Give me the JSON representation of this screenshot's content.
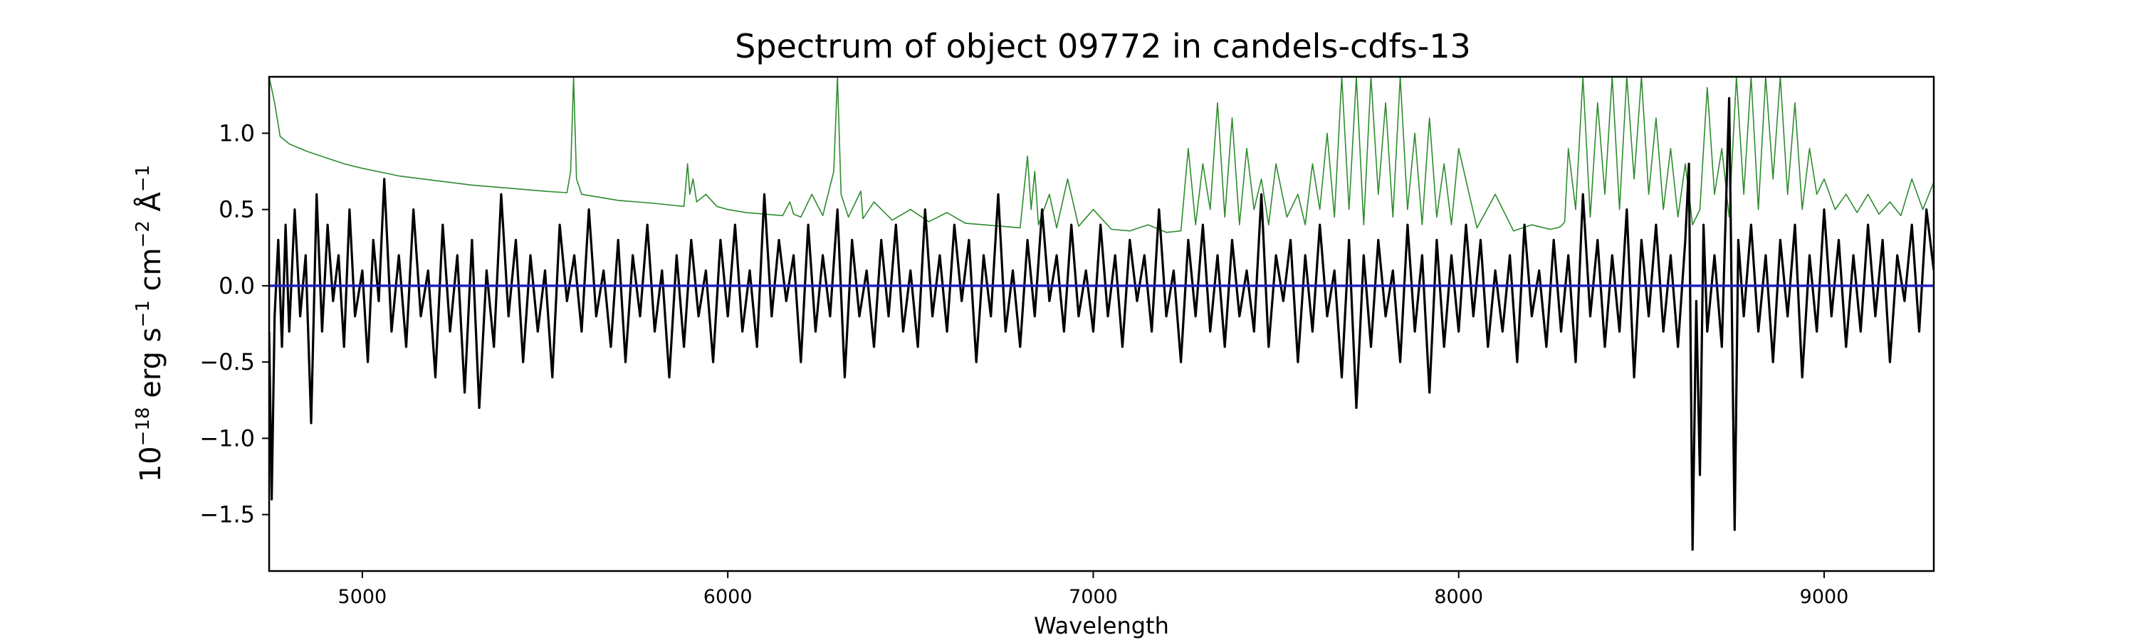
{
  "chart_data": {
    "type": "line",
    "title": "Spectrum of object 09772 in candels-cdfs-13",
    "xlabel": "Wavelength",
    "ylabel": {
      "base": "10",
      "exp_base": "−18",
      "t1": " erg s",
      "exp1": "−1",
      "t2": " cm",
      "exp2": "−2",
      "t3": " Å",
      "exp3": "−1"
    },
    "xlim": [
      4745,
      9300
    ],
    "ylim": [
      -1.87,
      1.37
    ],
    "xticks": [
      5000,
      6000,
      7000,
      8000,
      9000
    ],
    "xtick_labels": [
      "5000",
      "6000",
      "7000",
      "8000",
      "9000"
    ],
    "yticks": [
      1.0,
      0.5,
      0.0,
      -0.5,
      -1.0,
      -1.5
    ],
    "ytick_labels": [
      "1.0",
      "0.5",
      "0.0",
      "−0.5",
      "−1.0",
      "−1.5"
    ],
    "grid": false,
    "colors": {
      "flux": "#000000",
      "noise": "#2e8b2e",
      "zero": "#1f1fbf",
      "axes": "#000000"
    },
    "series": [
      {
        "role": "zero-line",
        "x": [
          4745,
          9300
        ],
        "y": [
          0.0,
          0.0
        ]
      },
      {
        "role": "noise",
        "x": [
          4745,
          4760,
          4775,
          4800,
          4850,
          4900,
          4950,
          5000,
          5100,
          5200,
          5300,
          5400,
          5500,
          5560,
          5570,
          5578,
          5586,
          5600,
          5700,
          5800,
          5880,
          5890,
          5896,
          5905,
          5915,
          5940,
          5970,
          6000,
          6050,
          6100,
          6150,
          6170,
          6180,
          6200,
          6230,
          6260,
          6290,
          6300,
          6310,
          6330,
          6364,
          6370,
          6400,
          6450,
          6500,
          6550,
          6600,
          6650,
          6700,
          6750,
          6800,
          6820,
          6830,
          6840,
          6850,
          6880,
          6900,
          6930,
          6960,
          7000,
          7050,
          7100,
          7150,
          7200,
          7240,
          7260,
          7280,
          7300,
          7320,
          7340,
          7360,
          7380,
          7400,
          7420,
          7440,
          7460,
          7480,
          7500,
          7530,
          7560,
          7580,
          7600,
          7620,
          7640,
          7660,
          7680,
          7700,
          7720,
          7740,
          7760,
          7780,
          7800,
          7820,
          7840,
          7860,
          7880,
          7900,
          7920,
          7940,
          7960,
          7980,
          8000,
          8050,
          8100,
          8150,
          8200,
          8250,
          8270,
          8280,
          8290,
          8300,
          8320,
          8340,
          8360,
          8380,
          8400,
          8420,
          8440,
          8460,
          8480,
          8500,
          8520,
          8540,
          8560,
          8580,
          8600,
          8620,
          8640,
          8660,
          8680,
          8700,
          8720,
          8740,
          8760,
          8780,
          8800,
          8820,
          8840,
          8860,
          8880,
          8900,
          8920,
          8940,
          8960,
          8980,
          9000,
          9030,
          9060,
          9090,
          9120,
          9150,
          9180,
          9210,
          9240,
          9270,
          9300
        ],
        "y": [
          1.37,
          1.2,
          0.98,
          0.93,
          0.88,
          0.84,
          0.8,
          0.77,
          0.72,
          0.69,
          0.66,
          0.64,
          0.62,
          0.61,
          0.75,
          1.37,
          0.7,
          0.6,
          0.56,
          0.54,
          0.52,
          0.8,
          0.6,
          0.7,
          0.55,
          0.6,
          0.52,
          0.5,
          0.48,
          0.47,
          0.46,
          0.55,
          0.47,
          0.45,
          0.6,
          0.46,
          0.75,
          1.37,
          0.6,
          0.45,
          0.62,
          0.44,
          0.55,
          0.43,
          0.5,
          0.42,
          0.48,
          0.41,
          0.4,
          0.39,
          0.38,
          0.85,
          0.5,
          0.75,
          0.4,
          0.6,
          0.38,
          0.7,
          0.39,
          0.5,
          0.37,
          0.36,
          0.4,
          0.35,
          0.36,
          0.9,
          0.4,
          0.8,
          0.5,
          1.2,
          0.45,
          1.1,
          0.4,
          0.9,
          0.5,
          0.7,
          0.4,
          0.8,
          0.45,
          0.6,
          0.4,
          0.8,
          0.5,
          1.0,
          0.45,
          1.37,
          0.5,
          1.37,
          0.4,
          1.37,
          0.6,
          1.2,
          0.45,
          1.37,
          0.5,
          1.0,
          0.4,
          1.1,
          0.45,
          0.8,
          0.4,
          0.9,
          0.38,
          0.6,
          0.36,
          0.4,
          0.37,
          0.38,
          0.39,
          0.42,
          0.9,
          0.5,
          1.37,
          0.45,
          1.2,
          0.6,
          1.37,
          0.5,
          1.37,
          0.7,
          1.37,
          0.6,
          1.1,
          0.5,
          0.9,
          0.45,
          0.8,
          0.4,
          0.5,
          1.3,
          0.6,
          0.9,
          0.45,
          1.37,
          0.6,
          1.37,
          0.5,
          1.37,
          0.7,
          1.37,
          0.6,
          1.2,
          0.5,
          0.9,
          0.6,
          0.7,
          0.5,
          0.6,
          0.48,
          0.6,
          0.47,
          0.55,
          0.46,
          0.7,
          0.5,
          0.68
        ]
      },
      {
        "role": "flux",
        "x": [
          4745,
          4752,
          4760,
          4770,
          4780,
          4790,
          4800,
          4815,
          4830,
          4845,
          4860,
          4875,
          4890,
          4905,
          4920,
          4935,
          4950,
          4965,
          4980,
          5000,
          5015,
          5030,
          5045,
          5060,
          5080,
          5100,
          5120,
          5140,
          5160,
          5180,
          5200,
          5220,
          5240,
          5260,
          5280,
          5300,
          5320,
          5340,
          5360,
          5380,
          5400,
          5420,
          5440,
          5460,
          5480,
          5500,
          5520,
          5540,
          5560,
          5580,
          5600,
          5620,
          5640,
          5660,
          5680,
          5700,
          5720,
          5740,
          5760,
          5780,
          5800,
          5820,
          5840,
          5860,
          5880,
          5900,
          5920,
          5940,
          5960,
          5980,
          6000,
          6020,
          6040,
          6060,
          6080,
          6100,
          6120,
          6140,
          6160,
          6180,
          6200,
          6220,
          6240,
          6260,
          6280,
          6300,
          6320,
          6340,
          6360,
          6380,
          6400,
          6420,
          6440,
          6460,
          6480,
          6500,
          6520,
          6540,
          6560,
          6580,
          6600,
          6620,
          6640,
          6660,
          6680,
          6700,
          6720,
          6740,
          6760,
          6780,
          6800,
          6820,
          6840,
          6860,
          6880,
          6900,
          6920,
          6940,
          6960,
          6980,
          7000,
          7020,
          7040,
          7060,
          7080,
          7100,
          7120,
          7140,
          7160,
          7180,
          7200,
          7220,
          7240,
          7260,
          7280,
          7300,
          7320,
          7340,
          7360,
          7380,
          7400,
          7420,
          7440,
          7460,
          7480,
          7500,
          7520,
          7540,
          7560,
          7580,
          7600,
          7620,
          7640,
          7660,
          7680,
          7700,
          7720,
          7740,
          7760,
          7780,
          7800,
          7820,
          7840,
          7860,
          7880,
          7900,
          7920,
          7940,
          7960,
          7980,
          8000,
          8020,
          8040,
          8060,
          8080,
          8100,
          8120,
          8140,
          8160,
          8180,
          8200,
          8220,
          8240,
          8260,
          8280,
          8300,
          8320,
          8340,
          8360,
          8380,
          8400,
          8420,
          8440,
          8460,
          8480,
          8500,
          8520,
          8540,
          8560,
          8580,
          8600,
          8620,
          8630,
          8640,
          8650,
          8660,
          8670,
          8680,
          8700,
          8720,
          8740,
          8755,
          8765,
          8780,
          8800,
          8820,
          8840,
          8860,
          8880,
          8900,
          8920,
          8940,
          8960,
          8980,
          9000,
          9020,
          9040,
          9060,
          9080,
          9100,
          9120,
          9140,
          9160,
          9180,
          9200,
          9220,
          9240,
          9260,
          9280,
          9300
        ],
        "y": [
          -0.3,
          -1.4,
          -0.2,
          0.3,
          -0.4,
          0.4,
          -0.3,
          0.5,
          -0.2,
          0.2,
          -0.9,
          0.6,
          -0.3,
          0.4,
          -0.1,
          0.2,
          -0.4,
          0.5,
          -0.2,
          0.1,
          -0.5,
          0.3,
          -0.1,
          0.7,
          -0.3,
          0.2,
          -0.4,
          0.5,
          -0.2,
          0.1,
          -0.6,
          0.4,
          -0.3,
          0.2,
          -0.7,
          0.3,
          -0.8,
          0.1,
          -0.4,
          0.6,
          -0.2,
          0.3,
          -0.5,
          0.2,
          -0.3,
          0.1,
          -0.6,
          0.4,
          -0.1,
          0.2,
          -0.3,
          0.5,
          -0.2,
          0.1,
          -0.4,
          0.3,
          -0.5,
          0.2,
          -0.2,
          0.4,
          -0.3,
          0.1,
          -0.6,
          0.2,
          -0.4,
          0.3,
          -0.2,
          0.1,
          -0.5,
          0.3,
          -0.2,
          0.4,
          -0.3,
          0.1,
          -0.4,
          0.6,
          -0.2,
          0.3,
          -0.1,
          0.2,
          -0.5,
          0.4,
          -0.3,
          0.2,
          -0.2,
          0.5,
          -0.6,
          0.3,
          -0.2,
          0.1,
          -0.4,
          0.3,
          -0.2,
          0.4,
          -0.3,
          0.1,
          -0.4,
          0.5,
          -0.2,
          0.2,
          -0.3,
          0.4,
          -0.1,
          0.3,
          -0.5,
          0.2,
          -0.2,
          0.6,
          -0.3,
          0.1,
          -0.4,
          0.3,
          -0.2,
          0.5,
          -0.1,
          0.2,
          -0.3,
          0.4,
          -0.2,
          0.1,
          -0.3,
          0.4,
          -0.2,
          0.2,
          -0.4,
          0.3,
          -0.1,
          0.2,
          -0.3,
          0.5,
          -0.2,
          0.1,
          -0.5,
          0.3,
          -0.2,
          0.4,
          -0.3,
          0.2,
          -0.4,
          0.3,
          -0.2,
          0.1,
          -0.3,
          0.6,
          -0.4,
          0.2,
          -0.1,
          0.3,
          -0.5,
          0.2,
          -0.3,
          0.4,
          -0.2,
          0.1,
          -0.6,
          0.3,
          -0.8,
          0.2,
          -0.4,
          0.3,
          -0.2,
          0.1,
          -0.5,
          0.4,
          -0.3,
          0.2,
          -0.7,
          0.3,
          -0.4,
          0.2,
          -0.3,
          0.4,
          -0.2,
          0.3,
          -0.4,
          0.1,
          -0.3,
          0.2,
          -0.5,
          0.4,
          -0.2,
          0.1,
          -0.4,
          0.3,
          -0.3,
          0.2,
          -0.5,
          0.6,
          -0.2,
          0.3,
          -0.4,
          0.2,
          -0.3,
          0.5,
          -0.6,
          0.3,
          -0.2,
          0.4,
          -0.3,
          0.2,
          -0.4,
          0.3,
          0.8,
          -1.73,
          -0.1,
          -1.24,
          0.4,
          -0.3,
          0.2,
          -0.4,
          1.23,
          -1.6,
          0.3,
          -0.2,
          0.4,
          -0.3,
          0.2,
          -0.5,
          0.3,
          -0.2,
          0.4,
          -0.6,
          0.2,
          -0.3,
          0.5,
          -0.2,
          0.3,
          -0.4,
          0.2,
          -0.3,
          0.4,
          -0.2,
          0.3,
          -0.5,
          0.2,
          -0.1,
          0.4,
          -0.3,
          0.5,
          0.1
        ]
      }
    ]
  }
}
